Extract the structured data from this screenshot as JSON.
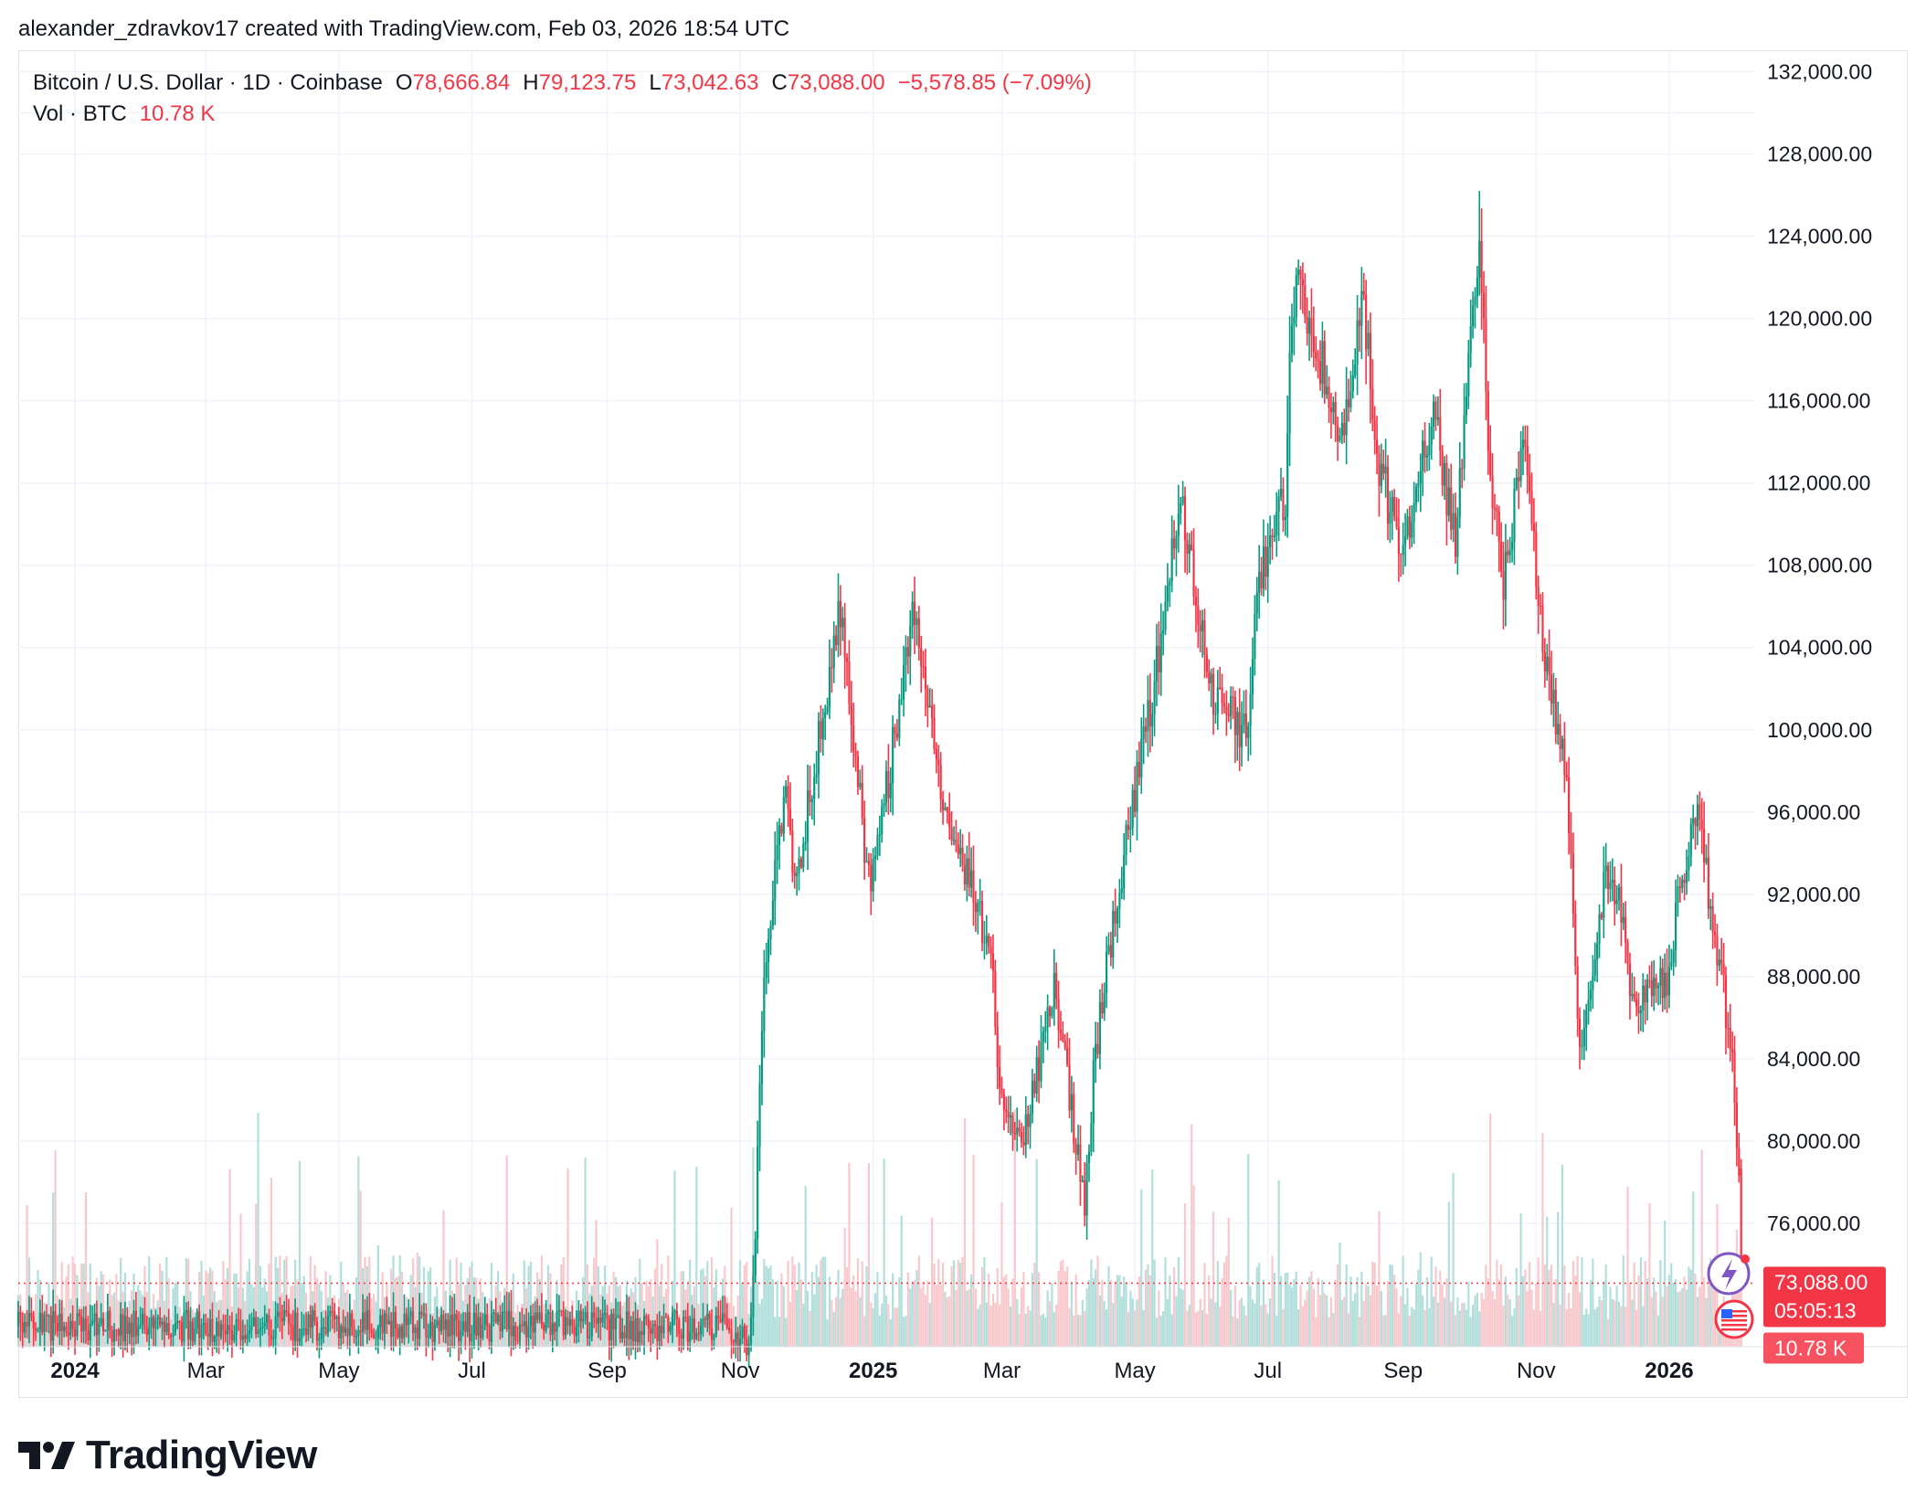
{
  "header": {
    "attribution": "alexander_zdravkov17 created with TradingView.com, Feb 03, 2026 18:54 UTC"
  },
  "legend": {
    "symbol": "Bitcoin / U.S. Dollar · 1D · Coinbase",
    "open_label": "O",
    "open": "78,666.84",
    "high_label": "H",
    "high": "79,123.75",
    "low_label": "L",
    "low": "73,042.63",
    "close_label": "C",
    "close": "73,088.00",
    "change": "−5,578.85 (−7.09%)",
    "vol_label": "Vol · BTC",
    "vol_value": "10.78 K"
  },
  "price_badge": {
    "price": "73,088.00",
    "countdown": "05:05:13",
    "volume": "10.78 K"
  },
  "logo": {
    "text": "TradingView"
  },
  "colors": {
    "up": "#089981",
    "down": "#f23645",
    "vol_up": "#b2dfdb",
    "vol_down": "#f8c9cc",
    "grid": "#f0f3fa",
    "axis_text": "#131722"
  },
  "chart_data": {
    "type": "candlestick",
    "interval": "1D",
    "y_axis": {
      "position": "right",
      "range": [
        70000,
        133000
      ],
      "ticks": [
        76000,
        80000,
        84000,
        88000,
        92000,
        96000,
        100000,
        104000,
        108000,
        112000,
        116000,
        120000,
        124000,
        128000,
        132000
      ],
      "tick_labels": [
        "76,000.00",
        "80,000.00",
        "84,000.00",
        "88,000.00",
        "92,000.00",
        "96,000.00",
        "100,000.00",
        "104,000.00",
        "108,000.00",
        "112,000.00",
        "116,000.00",
        "120,000.00",
        "124,000.00",
        "128,000.00",
        "132,000.00"
      ]
    },
    "x_axis": {
      "range": [
        "2023-12-06",
        "2026-02-09"
      ],
      "ticks": [
        {
          "date": "2024-01-01",
          "label": "2024",
          "bold": true
        },
        {
          "date": "2024-03-01",
          "label": "Mar"
        },
        {
          "date": "2024-05-01",
          "label": "May"
        },
        {
          "date": "2024-07-01",
          "label": "Jul"
        },
        {
          "date": "2024-09-01",
          "label": "Sep"
        },
        {
          "date": "2024-11-01",
          "label": "Nov"
        },
        {
          "date": "2025-01-01",
          "label": "2025",
          "bold": true
        },
        {
          "date": "2025-03-01",
          "label": "Mar"
        },
        {
          "date": "2025-05-01",
          "label": "May"
        },
        {
          "date": "2025-07-01",
          "label": "Jul"
        },
        {
          "date": "2025-09-01",
          "label": "Sep"
        },
        {
          "date": "2025-11-01",
          "label": "Nov"
        },
        {
          "date": "2026-01-01",
          "label": "2026",
          "bold": true
        }
      ]
    },
    "price_path": [
      [
        "2024-10-28",
        71000
      ],
      [
        "2024-11-05",
        70000
      ],
      [
        "2024-11-08",
        76000
      ],
      [
        "2024-11-12",
        88000
      ],
      [
        "2024-11-22",
        98000
      ],
      [
        "2024-11-26",
        92000
      ],
      [
        "2024-12-05",
        98000
      ],
      [
        "2024-12-17",
        106000
      ],
      [
        "2024-12-30",
        92500
      ],
      [
        "2025-01-07",
        97000
      ],
      [
        "2025-01-20",
        106000
      ],
      [
        "2025-01-27",
        101000
      ],
      [
        "2025-02-02",
        97000
      ],
      [
        "2025-02-24",
        89000
      ],
      [
        "2025-02-28",
        82500
      ],
      [
        "2025-03-10",
        79500
      ],
      [
        "2025-03-25",
        87500
      ],
      [
        "2025-04-06",
        78500
      ],
      [
        "2025-04-08",
        76500
      ],
      [
        "2025-04-12",
        83500
      ],
      [
        "2025-04-22",
        91500
      ],
      [
        "2025-05-08",
        101000
      ],
      [
        "2025-05-22",
        111000
      ],
      [
        "2025-06-05",
        102000
      ],
      [
        "2025-06-22",
        99500
      ],
      [
        "2025-06-26",
        107000
      ],
      [
        "2025-07-09",
        111500
      ],
      [
        "2025-07-11",
        117500
      ],
      [
        "2025-07-14",
        122000
      ],
      [
        "2025-07-31",
        116000
      ],
      [
        "2025-08-02",
        113000
      ],
      [
        "2025-08-14",
        121000
      ],
      [
        "2025-08-20",
        113500
      ],
      [
        "2025-08-31",
        108500
      ],
      [
        "2025-09-15",
        115500
      ],
      [
        "2025-09-25",
        109000
      ],
      [
        "2025-10-06",
        124500
      ],
      [
        "2025-10-10",
        113500
      ],
      [
        "2025-10-17",
        107000
      ],
      [
        "2025-10-27",
        115000
      ],
      [
        "2025-11-04",
        103500
      ],
      [
        "2025-11-13",
        99500
      ],
      [
        "2025-11-17",
        94000
      ],
      [
        "2025-11-21",
        84500
      ],
      [
        "2025-12-03",
        93000
      ],
      [
        "2025-12-10",
        91500
      ],
      [
        "2025-12-15",
        86500
      ],
      [
        "2025-12-31",
        88000
      ],
      [
        "2026-01-05",
        91500
      ],
      [
        "2026-01-14",
        96500
      ],
      [
        "2026-01-20",
        91000
      ],
      [
        "2026-01-25",
        88000
      ],
      [
        "2026-01-30",
        84000
      ],
      [
        "2026-02-02",
        78700
      ],
      [
        "2026-02-03",
        73088
      ]
    ],
    "price_range_notes": {
      "high": 126200,
      "high_date": "2025-10-06",
      "last_close": 73088,
      "last_date": "2026-02-03"
    },
    "volume": {
      "unit": "BTC",
      "last": 10780
    },
    "current_price_line": 73088
  }
}
